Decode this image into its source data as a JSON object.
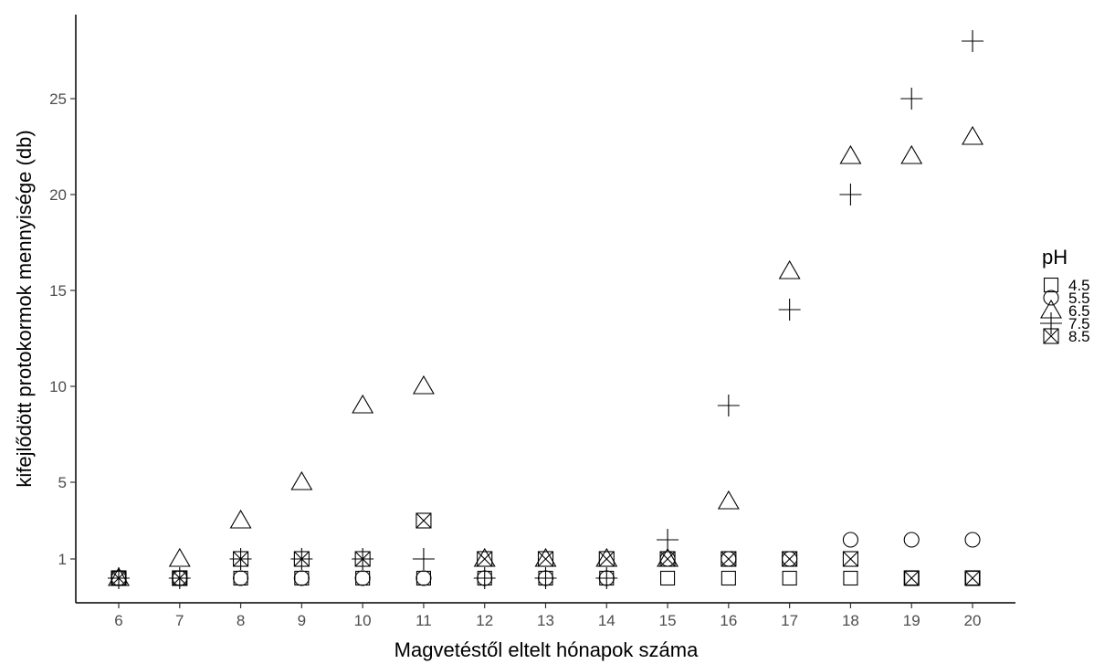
{
  "chart_data": {
    "type": "scatter",
    "title": "",
    "xlabel": "Magvetéstől eltelt hónapok száma",
    "ylabel": "kifejlődött protokormok mennyisége (db)",
    "x_ticks": [
      6,
      7,
      8,
      9,
      10,
      11,
      12,
      13,
      14,
      15,
      16,
      17,
      18,
      19,
      20
    ],
    "y_ticks": [
      1,
      5,
      10,
      15,
      20,
      25
    ],
    "xlim": [
      5.3,
      20.7
    ],
    "ylim": [
      -1.2,
      29.5
    ],
    "grid": false,
    "legend": {
      "title": "pH",
      "position": "right"
    },
    "series": [
      {
        "name": "4.5",
        "shape": "square",
        "points": [
          [
            6,
            0
          ],
          [
            7,
            0
          ],
          [
            8,
            0
          ],
          [
            9,
            0
          ],
          [
            10,
            0
          ],
          [
            11,
            0
          ],
          [
            12,
            0
          ],
          [
            13,
            0
          ],
          [
            14,
            0
          ],
          [
            15,
            0
          ],
          [
            16,
            0
          ],
          [
            17,
            0
          ],
          [
            18,
            0
          ],
          [
            19,
            0
          ],
          [
            20,
            0
          ]
        ]
      },
      {
        "name": "5.5",
        "shape": "circle",
        "points": [
          [
            6,
            0
          ],
          [
            7,
            0
          ],
          [
            8,
            0
          ],
          [
            9,
            0
          ],
          [
            10,
            0
          ],
          [
            11,
            0
          ],
          [
            12,
            0
          ],
          [
            13,
            0
          ],
          [
            14,
            0
          ],
          [
            15,
            1
          ],
          [
            16,
            1
          ],
          [
            17,
            1
          ],
          [
            18,
            2
          ],
          [
            19,
            2
          ],
          [
            20,
            2
          ]
        ]
      },
      {
        "name": "6.5",
        "shape": "triangle",
        "points": [
          [
            6,
            0
          ],
          [
            7,
            1
          ],
          [
            8,
            3
          ],
          [
            9,
            5
          ],
          [
            10,
            9
          ],
          [
            11,
            10
          ],
          [
            12,
            1
          ],
          [
            13,
            1
          ],
          [
            14,
            1
          ],
          [
            15,
            1
          ],
          [
            16,
            4
          ],
          [
            17,
            16
          ],
          [
            18,
            22
          ],
          [
            19,
            22
          ],
          [
            20,
            23
          ]
        ]
      },
      {
        "name": "7.5",
        "shape": "plus",
        "points": [
          [
            6,
            0
          ],
          [
            7,
            0
          ],
          [
            8,
            1
          ],
          [
            9,
            1
          ],
          [
            10,
            1
          ],
          [
            11,
            1
          ],
          [
            12,
            0
          ],
          [
            13,
            0
          ],
          [
            14,
            0
          ],
          [
            15,
            2
          ],
          [
            16,
            9
          ],
          [
            17,
            14
          ],
          [
            18,
            20
          ],
          [
            19,
            25
          ],
          [
            20,
            28
          ]
        ]
      },
      {
        "name": "8.5",
        "shape": "square-x",
        "points": [
          [
            6,
            0
          ],
          [
            7,
            0
          ],
          [
            8,
            1
          ],
          [
            9,
            1
          ],
          [
            10,
            1
          ],
          [
            11,
            3
          ],
          [
            12,
            1
          ],
          [
            13,
            1
          ],
          [
            14,
            1
          ],
          [
            15,
            1
          ],
          [
            16,
            1
          ],
          [
            17,
            1
          ],
          [
            18,
            1
          ],
          [
            19,
            0
          ],
          [
            20,
            0
          ]
        ]
      }
    ]
  }
}
